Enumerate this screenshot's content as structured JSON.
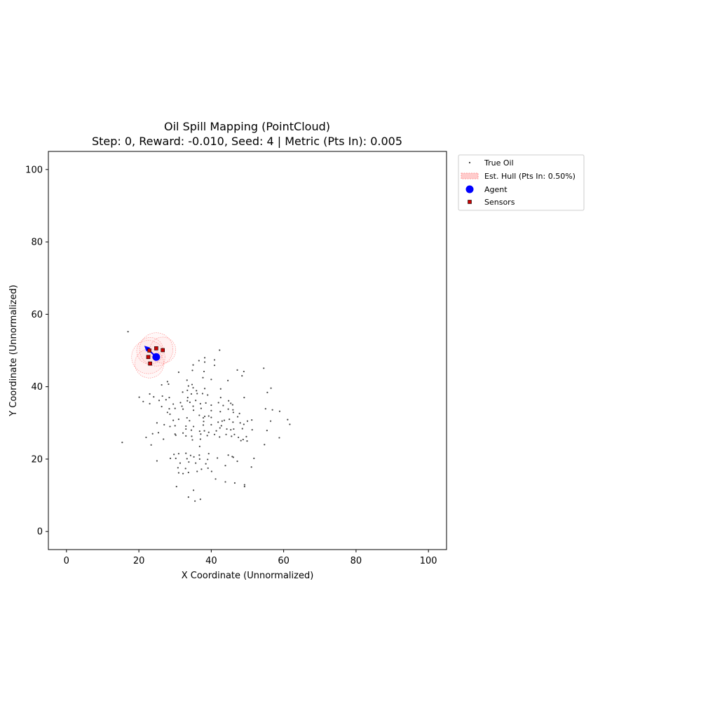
{
  "chart_data": {
    "type": "scatter",
    "title": "Oil Spill Mapping (PointCloud)",
    "subtitle": "Step: 0, Reward: -0.010, Seed: 4 | Metric (Pts In): 0.005",
    "xlabel": "X Coordinate (Unnormalized)",
    "ylabel": "Y Coordinate (Unnormalized)",
    "xlim": [
      -5,
      105
    ],
    "ylim": [
      -5,
      105
    ],
    "xticks": [
      0,
      20,
      40,
      60,
      80,
      100
    ],
    "yticks": [
      0,
      20,
      40,
      60,
      80,
      100
    ],
    "grid": false,
    "legend_position": "outside-top-right",
    "legend": [
      {
        "label": "True Oil",
        "marker": "dot",
        "color": "#333333"
      },
      {
        "label": "Est. Hull (Pts In: 0.50%)",
        "marker": "patch",
        "color": "#ffaaaa"
      },
      {
        "label": "Agent",
        "marker": "circle",
        "color": "#0000ff"
      },
      {
        "label": "Sensors",
        "marker": "square",
        "color": "#cc0000"
      }
    ],
    "true_oil": [
      [
        17.0,
        55.2
      ],
      [
        42.3,
        50.1
      ],
      [
        33.3,
        41.8
      ],
      [
        38.2,
        48.0
      ],
      [
        40.9,
        47.4
      ],
      [
        36.6,
        47.2
      ],
      [
        35.0,
        46.0
      ],
      [
        38.2,
        46.8
      ],
      [
        40.9,
        45.9
      ],
      [
        31.0,
        44.0
      ],
      [
        34.8,
        44.5
      ],
      [
        38.0,
        44.2
      ],
      [
        47.2,
        44.6
      ],
      [
        49.0,
        44.2
      ],
      [
        54.5,
        45.1
      ],
      [
        48.5,
        43.0
      ],
      [
        44.6,
        41.7
      ],
      [
        37.7,
        42.5
      ],
      [
        40.0,
        42.0
      ],
      [
        27.9,
        41.4
      ],
      [
        26.3,
        40.5
      ],
      [
        28.2,
        40.7
      ],
      [
        33.7,
        40.2
      ],
      [
        34.7,
        40.6
      ],
      [
        35.0,
        39.7
      ],
      [
        38.2,
        39.5
      ],
      [
        42.6,
        39.4
      ],
      [
        33.4,
        39.0
      ],
      [
        35.9,
        38.9
      ],
      [
        32.1,
        38.5
      ],
      [
        34.5,
        38.0
      ],
      [
        36.1,
        38.1
      ],
      [
        37.6,
        38.1
      ],
      [
        23.0,
        38.0
      ],
      [
        24.1,
        37.2
      ],
      [
        26.5,
        37.4
      ],
      [
        28.4,
        37.0
      ],
      [
        33.5,
        37.0
      ],
      [
        39.0,
        37.7
      ],
      [
        42.6,
        37.0
      ],
      [
        44.8,
        36.1
      ],
      [
        49.1,
        37.0
      ],
      [
        56.5,
        39.6
      ],
      [
        55.5,
        38.4
      ],
      [
        20.1,
        37.1
      ],
      [
        21.2,
        35.9
      ],
      [
        23.0,
        35.3
      ],
      [
        25.6,
        36.2
      ],
      [
        27.5,
        36.4
      ],
      [
        29.5,
        35.2
      ],
      [
        31.5,
        35.6
      ],
      [
        33.4,
        36.1
      ],
      [
        34.1,
        35.7
      ],
      [
        35.7,
        36.2
      ],
      [
        37.0,
        35.3
      ],
      [
        38.5,
        35.5
      ],
      [
        40.0,
        34.9
      ],
      [
        42.0,
        35.6
      ],
      [
        43.3,
        34.8
      ],
      [
        45.4,
        35.4
      ],
      [
        45.9,
        35.0
      ],
      [
        31.9,
        34.6
      ],
      [
        35.0,
        34.6
      ],
      [
        37.2,
        34.0
      ],
      [
        44.7,
        33.8
      ],
      [
        46.0,
        33.6
      ],
      [
        55.0,
        33.9
      ],
      [
        56.9,
        33.6
      ],
      [
        58.9,
        33.2
      ],
      [
        26.3,
        34.5
      ],
      [
        28.4,
        33.9
      ],
      [
        30.0,
        34.0
      ],
      [
        32.2,
        33.8
      ],
      [
        35.1,
        33.5
      ],
      [
        40.0,
        33.4
      ],
      [
        42.5,
        33.1
      ],
      [
        46.1,
        32.9
      ],
      [
        47.8,
        32.6
      ],
      [
        27.9,
        32.9
      ],
      [
        28.6,
        32.4
      ],
      [
        36.7,
        32.1
      ],
      [
        38.2,
        31.8
      ],
      [
        39.3,
        31.9
      ],
      [
        47.3,
        31.7
      ],
      [
        33.3,
        31.4
      ],
      [
        37.8,
        31.4
      ],
      [
        40.0,
        31.5
      ],
      [
        45.0,
        31.0
      ],
      [
        43.6,
        30.7
      ],
      [
        41.9,
        30.2
      ],
      [
        29.5,
        30.7
      ],
      [
        31.0,
        31.0
      ],
      [
        34.0,
        30.6
      ],
      [
        37.9,
        30.4
      ],
      [
        43.0,
        30.5
      ],
      [
        46.0,
        30.2
      ],
      [
        48.0,
        30.0
      ],
      [
        49.0,
        29.6
      ],
      [
        50.0,
        30.5
      ],
      [
        51.2,
        30.8
      ],
      [
        56.4,
        30.5
      ],
      [
        61.1,
        30.9
      ],
      [
        61.7,
        29.6
      ],
      [
        25.0,
        30.0
      ],
      [
        27.0,
        29.5
      ],
      [
        28.6,
        29.0
      ],
      [
        30.0,
        29.2
      ],
      [
        33.0,
        29.1
      ],
      [
        35.1,
        29.0
      ],
      [
        37.8,
        29.4
      ],
      [
        40.0,
        29.5
      ],
      [
        42.4,
        28.6
      ],
      [
        42.8,
        29.2
      ],
      [
        44.3,
        28.3
      ],
      [
        45.4,
        28.1
      ],
      [
        46.2,
        28.3
      ],
      [
        48.6,
        28.4
      ],
      [
        51.3,
        28.1
      ],
      [
        33.0,
        28.3
      ],
      [
        34.5,
        28.0
      ],
      [
        36.8,
        27.7
      ],
      [
        38.1,
        27.8
      ],
      [
        39.3,
        27.4
      ],
      [
        41.4,
        27.8
      ],
      [
        32.2,
        27.2
      ],
      [
        30.0,
        26.9
      ],
      [
        37.1,
        26.9
      ],
      [
        40.9,
        26.8
      ],
      [
        44.1,
        26.8
      ],
      [
        46.4,
        26.8
      ],
      [
        49.7,
        26.2
      ],
      [
        55.4,
        27.9
      ],
      [
        23.8,
        27.0
      ],
      [
        25.4,
        27.3
      ],
      [
        30.2,
        26.6
      ],
      [
        33.0,
        26.4
      ],
      [
        34.6,
        26.3
      ],
      [
        38.9,
        26.5
      ],
      [
        42.3,
        26.1
      ],
      [
        45.6,
        26.3
      ],
      [
        47.5,
        26.0
      ],
      [
        48.8,
        25.4
      ],
      [
        58.8,
        25.9
      ],
      [
        22.0,
        26.0
      ],
      [
        26.8,
        25.5
      ],
      [
        34.8,
        25.3
      ],
      [
        37.0,
        25.5
      ],
      [
        48.2,
        25.1
      ],
      [
        49.9,
        25.0
      ],
      [
        54.7,
        24.0
      ],
      [
        23.4,
        23.9
      ],
      [
        36.8,
        23.5
      ],
      [
        15.4,
        24.6
      ],
      [
        31.0,
        21.5
      ],
      [
        33.0,
        21.6
      ],
      [
        29.7,
        21.3
      ],
      [
        34.3,
        21.0
      ],
      [
        36.7,
        21.1
      ],
      [
        39.3,
        21.5
      ],
      [
        44.7,
        21.1
      ],
      [
        45.8,
        20.7
      ],
      [
        51.8,
        20.2
      ],
      [
        25.0,
        19.5
      ],
      [
        28.7,
        20.2
      ],
      [
        30.2,
        20.2
      ],
      [
        33.3,
        20.1
      ],
      [
        35.2,
        20.6
      ],
      [
        36.8,
        20.0
      ],
      [
        39.0,
        19.9
      ],
      [
        41.7,
        20.3
      ],
      [
        46.1,
        20.5
      ],
      [
        47.2,
        19.4
      ],
      [
        31.4,
        18.9
      ],
      [
        33.8,
        19.2
      ],
      [
        35.7,
        18.9
      ],
      [
        38.5,
        18.7
      ],
      [
        43.9,
        18.2
      ],
      [
        51.1,
        17.8
      ],
      [
        30.8,
        17.6
      ],
      [
        32.9,
        17.4
      ],
      [
        37.3,
        17.2
      ],
      [
        39.1,
        17.5
      ],
      [
        40.1,
        16.6
      ],
      [
        31.0,
        16.2
      ],
      [
        32.2,
        16.0
      ],
      [
        33.7,
        16.3
      ],
      [
        36.1,
        16.6
      ],
      [
        41.2,
        14.5
      ],
      [
        43.9,
        13.7
      ],
      [
        46.5,
        13.4
      ],
      [
        49.2,
        12.9
      ],
      [
        49.2,
        12.4
      ],
      [
        30.4,
        12.4
      ],
      [
        35.1,
        11.4
      ],
      [
        33.7,
        9.5
      ],
      [
        37.0,
        8.9
      ],
      [
        35.5,
        8.4
      ]
    ],
    "hull_circles": [
      {
        "cx": 24.8,
        "cy": 50.3,
        "r": 4.6
      },
      {
        "cx": 23.1,
        "cy": 49.9,
        "r": 3.7
      },
      {
        "cx": 26.6,
        "cy": 50.1,
        "r": 3.6
      },
      {
        "cx": 22.6,
        "cy": 48.2,
        "r": 4.6
      },
      {
        "cx": 22.9,
        "cy": 46.4,
        "r": 4.0
      }
    ],
    "agent": {
      "x": 24.8,
      "y": 48.2,
      "heading_to": {
        "x": 21.5,
        "y": 51.3
      }
    },
    "sensors": [
      [
        24.8,
        50.6
      ],
      [
        26.6,
        50.1
      ],
      [
        22.9,
        50.0
      ],
      [
        22.6,
        48.2
      ],
      [
        23.1,
        46.4
      ]
    ],
    "colors": {
      "oil": "#333333",
      "hull_edge": "#ff8080",
      "hull_fill": "#ffaaaa",
      "agent": "#0000ff",
      "sensor": "#cc0000",
      "sensor_edge": "#000000",
      "arrow": "#0000ff"
    }
  }
}
